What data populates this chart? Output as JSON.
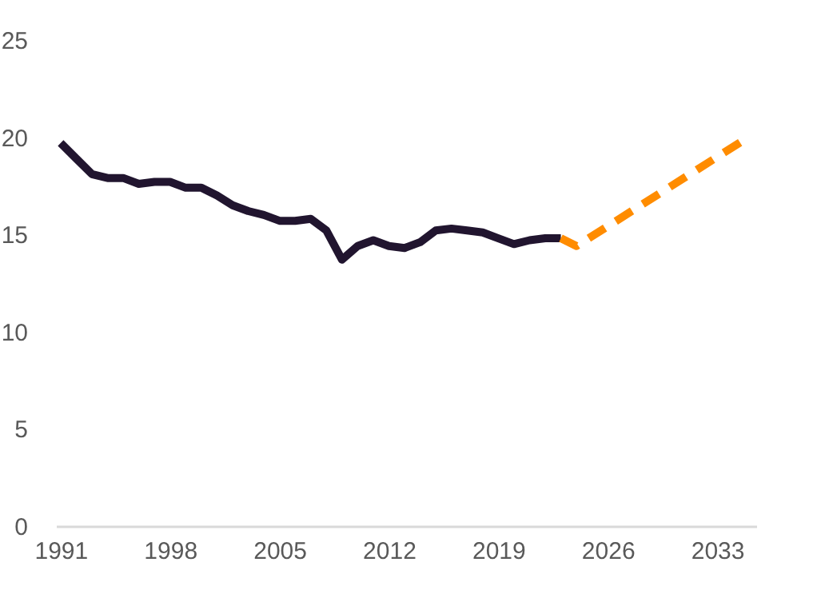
{
  "chart_data": {
    "type": "line",
    "xlim": [
      1990.7,
      2035.5
    ],
    "xticks": [
      1991,
      1998,
      2005,
      2012,
      2019,
      2026,
      2033
    ],
    "ylim": [
      0,
      25
    ],
    "yticks": [
      0,
      5,
      10,
      15,
      20,
      25
    ],
    "grid": false,
    "legend": false,
    "series": [
      {
        "color": "#21152f",
        "line_style": "solid",
        "x": [
          1991,
          1992,
          1993,
          1994,
          1995,
          1996,
          1997,
          1998,
          1999,
          2000,
          2001,
          2002,
          2003,
          2004,
          2005,
          2006,
          2007,
          2008,
          2009,
          2010,
          2011,
          2012,
          2013,
          2014,
          2015,
          2016,
          2017,
          2018,
          2019,
          2020,
          2021,
          2022,
          2023
        ],
        "values": [
          19.7,
          18.9,
          18.1,
          17.9,
          17.9,
          17.6,
          17.7,
          17.7,
          17.4,
          17.4,
          17.0,
          16.5,
          16.2,
          16.0,
          15.7,
          15.7,
          15.8,
          15.2,
          13.7,
          14.4,
          14.7,
          14.4,
          14.3,
          14.6,
          15.2,
          15.3,
          15.2,
          15.1,
          14.8,
          14.5,
          14.7,
          14.8,
          14.8
        ]
      },
      {
        "color": "#ff8c00",
        "line_style": "dashed",
        "x": [
          2023,
          2024,
          2035
        ],
        "values": [
          14.8,
          14.4,
          20.0
        ]
      }
    ]
  }
}
